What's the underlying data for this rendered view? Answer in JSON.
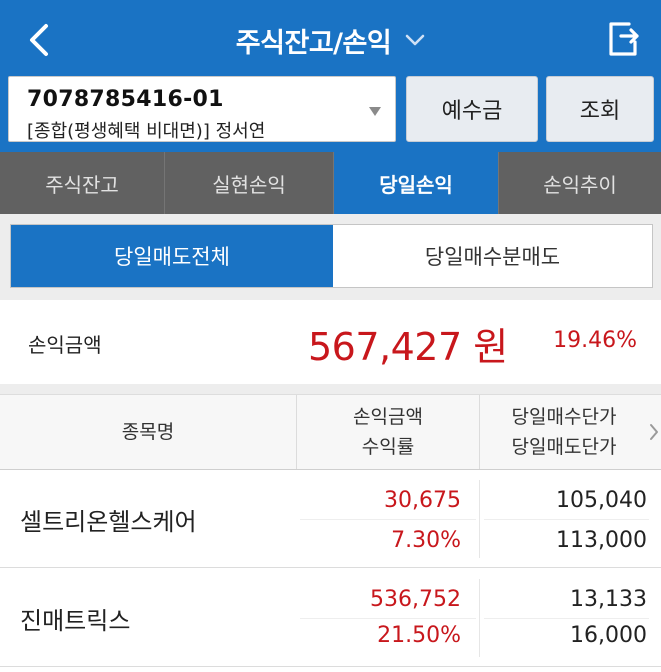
{
  "header": {
    "title": "주식잔고/손익",
    "back_icon": "chevron-left-icon",
    "dropdown_icon": "chevron-down-icon",
    "share_icon": "share-export-icon",
    "color": "#1a73c4"
  },
  "account": {
    "number": "7078785416-01",
    "description": "[종합(평생혜택 비대면)]  정서연",
    "deposit_button": "예수금",
    "query_button": "조회"
  },
  "tabs": [
    {
      "label": "주식잔고",
      "active": false
    },
    {
      "label": "실현손익",
      "active": false
    },
    {
      "label": "당일손익",
      "active": true
    },
    {
      "label": "손익추이",
      "active": false
    }
  ],
  "segment": [
    {
      "label": "당일매도전체",
      "active": true
    },
    {
      "label": "당일매수분매도",
      "active": false
    }
  ],
  "summary": {
    "label": "손익금액",
    "amount": "567,427 원",
    "rate": "19.46%",
    "color": "#c8171c"
  },
  "table": {
    "headers": {
      "name": "종목명",
      "pl_line1": "손익금액",
      "pl_line2": "수익률",
      "price_line1": "당일매수단가",
      "price_line2": "당일매도단가"
    },
    "rows": [
      {
        "name": "셀트리온헬스케어",
        "pl_amount": "30,675",
        "pl_rate": "7.30%",
        "buy_price": "105,040",
        "sell_price": "113,000"
      },
      {
        "name": "진매트릭스",
        "pl_amount": "536,752",
        "pl_rate": "21.50%",
        "buy_price": "13,133",
        "sell_price": "16,000"
      }
    ]
  }
}
